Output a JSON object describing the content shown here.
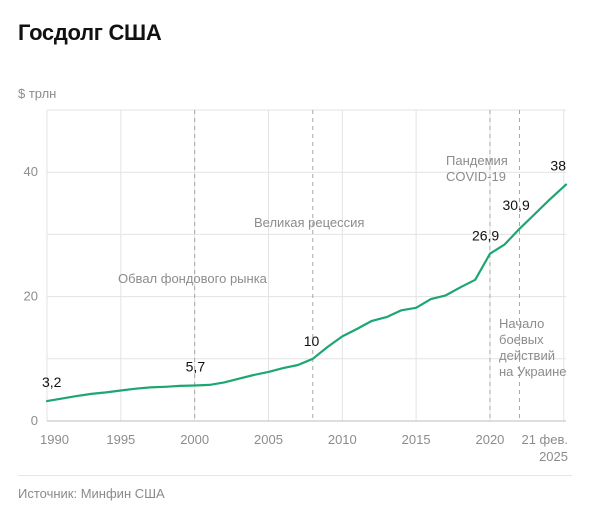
{
  "title": "Госдолг США",
  "source": "Источник: Минфин США",
  "colors": {
    "line": "#1ea672",
    "grid": "#e3e3e3",
    "dashed": "#a8a8a8",
    "text_muted": "#8c8c8c"
  },
  "chart_data": {
    "type": "line",
    "title": "Госдолг США",
    "ylabel": "$ трлн",
    "xlabel": "",
    "xlim": [
      1990,
      2025.15
    ],
    "ylim": [
      0,
      50
    ],
    "y_ticks": [
      "0",
      "20",
      "40"
    ],
    "y_tick_values": [
      0,
      20,
      40
    ],
    "x_ticks": [
      "1990",
      "1995",
      "2000",
      "2005",
      "2010",
      "2015",
      "2020"
    ],
    "x_tick_values": [
      1990,
      1995,
      2000,
      2005,
      2010,
      2015,
      2020
    ],
    "last_tick": {
      "value": 2025.15,
      "line1": "21 фев.",
      "line2": "2025"
    },
    "grid": true,
    "series": [
      {
        "x": [
          1990,
          1991,
          1992,
          1993,
          1994,
          1995,
          1996,
          1997,
          1998,
          1999,
          2000,
          2001,
          2002,
          2003,
          2004,
          2005,
          2006,
          2007,
          2008,
          2009,
          2010,
          2011,
          2012,
          2013,
          2014,
          2015,
          2016,
          2017,
          2018,
          2019,
          2020,
          2021,
          2022,
          2023,
          2024,
          2025.15
        ],
        "y": [
          3.2,
          3.6,
          4.0,
          4.35,
          4.6,
          4.9,
          5.2,
          5.4,
          5.5,
          5.65,
          5.7,
          5.8,
          6.2,
          6.8,
          7.4,
          7.9,
          8.5,
          9.0,
          10.0,
          11.9,
          13.6,
          14.8,
          16.1,
          16.7,
          17.8,
          18.2,
          19.6,
          20.2,
          21.5,
          22.7,
          26.9,
          28.4,
          30.9,
          33.2,
          35.5,
          38.0
        ]
      }
    ],
    "data_labels": [
      {
        "x": 1990,
        "y": 3.2,
        "text": "3,2"
      },
      {
        "x": 2000,
        "y": 5.7,
        "text": "5,7"
      },
      {
        "x": 2008,
        "y": 10,
        "text": "10"
      },
      {
        "x": 2020,
        "y": 26.9,
        "text": "26,9"
      },
      {
        "x": 2022,
        "y": 30.9,
        "text": "30,9"
      },
      {
        "x": 2025.15,
        "y": 38,
        "text": "38"
      }
    ],
    "events": [
      {
        "x": 2000,
        "lines": [
          "Обвал фондового рынка"
        ]
      },
      {
        "x": 2008,
        "lines": [
          "Великая рецессия"
        ]
      },
      {
        "x": 2020,
        "lines": [
          "Пандемия",
          "COVID-19"
        ]
      },
      {
        "x": 2022,
        "lines": [
          "Начало",
          "боевых",
          "действий",
          "на Украине"
        ]
      }
    ]
  }
}
